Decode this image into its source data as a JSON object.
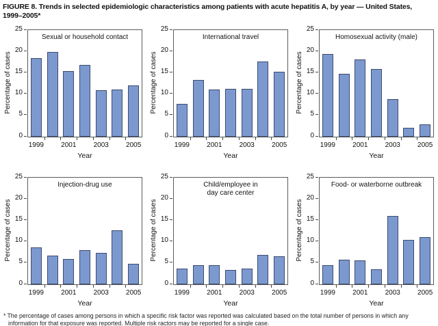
{
  "figure": {
    "title_line1": "FIGURE 8. Trends in selected epidemiologic characteristics among patients with acute hepatitis A, by year — United States,",
    "title_line2": "1999–2005*"
  },
  "footnote": {
    "marker": "*",
    "text": "The percentage of cases among persons in which a specific risk factor was reported was calculated based on the total number of persons in which any information for that exposure was reported. Multiple risk ractors may be reported for a single case."
  },
  "colors": {
    "bar_fill": "#7c99cf",
    "bar_stroke": "#3b4a70",
    "plot_border": "#5a5a5a",
    "tick": "#444444",
    "text": "#000000"
  },
  "chart_data": [
    {
      "type": "bar",
      "title": "Sexual or household contact",
      "categories": [
        "1999",
        "2000",
        "2001",
        "2002",
        "2003",
        "2004",
        "2005"
      ],
      "values": [
        18.3,
        19.8,
        15.3,
        16.8,
        10.8,
        11.0,
        12.0
      ],
      "xlabel": "Year",
      "ylabel": "Percentage of cases",
      "ylim": [
        0,
        25
      ],
      "yticks": [
        0,
        5,
        10,
        15,
        20,
        25
      ],
      "xticks_shown": [
        "1999",
        "2001",
        "2003",
        "2005"
      ],
      "grid": "off",
      "legend": "none"
    },
    {
      "type": "bar",
      "title": "International travel",
      "categories": [
        "1999",
        "2000",
        "2001",
        "2002",
        "2003",
        "2004",
        "2005"
      ],
      "values": [
        7.6,
        13.2,
        11.0,
        11.1,
        11.1,
        17.5,
        15.1
      ],
      "xlabel": "Year",
      "ylabel": "Percentage of cases",
      "ylim": [
        0,
        25
      ],
      "yticks": [
        0,
        5,
        10,
        15,
        20,
        25
      ],
      "xticks_shown": [
        "1999",
        "2001",
        "2003",
        "2005"
      ],
      "grid": "off",
      "legend": "none"
    },
    {
      "type": "bar",
      "title": "Homosexual activity (male)",
      "categories": [
        "1999",
        "2000",
        "2001",
        "2002",
        "2003",
        "2004",
        "2005"
      ],
      "values": [
        19.3,
        14.7,
        18.1,
        15.8,
        8.7,
        2.0,
        2.9
      ],
      "xlabel": "Year",
      "ylabel": "Percentage of cases",
      "ylim": [
        0,
        25
      ],
      "yticks": [
        0,
        5,
        10,
        15,
        20,
        25
      ],
      "xticks_shown": [
        "1999",
        "2001",
        "2003",
        "2005"
      ],
      "grid": "off",
      "legend": "none"
    },
    {
      "type": "bar",
      "title": "Injection-drug use",
      "categories": [
        "1999",
        "2000",
        "2001",
        "2002",
        "2003",
        "2004",
        "2005"
      ],
      "values": [
        8.6,
        6.6,
        5.9,
        8.0,
        7.3,
        12.6,
        4.8
      ],
      "xlabel": "Year",
      "ylabel": "Percentage of cases",
      "ylim": [
        0,
        25
      ],
      "yticks": [
        0,
        5,
        10,
        15,
        20,
        25
      ],
      "xticks_shown": [
        "1999",
        "2001",
        "2003",
        "2005"
      ],
      "grid": "off",
      "legend": "none"
    },
    {
      "type": "bar",
      "title": "Child/employee in\nday care center",
      "categories": [
        "1999",
        "2000",
        "2001",
        "2002",
        "2003",
        "2004",
        "2005"
      ],
      "values": [
        3.6,
        4.4,
        4.4,
        3.3,
        3.7,
        6.9,
        6.5
      ],
      "xlabel": "Year",
      "ylabel": "Percentage of cases",
      "ylim": [
        0,
        25
      ],
      "yticks": [
        0,
        5,
        10,
        15,
        20,
        25
      ],
      "xticks_shown": [
        "1999",
        "2001",
        "2003",
        "2005"
      ],
      "grid": "off",
      "legend": "none"
    },
    {
      "type": "bar",
      "title": "Food- or waterborne outbreak",
      "categories": [
        "1999",
        "2000",
        "2001",
        "2002",
        "2003",
        "2004",
        "2005"
      ],
      "values": [
        4.5,
        5.7,
        5.5,
        3.5,
        16.0,
        10.3,
        11.0
      ],
      "xlabel": "Year",
      "ylabel": "Percentage of cases",
      "ylim": [
        0,
        25
      ],
      "yticks": [
        0,
        5,
        10,
        15,
        20,
        25
      ],
      "xticks_shown": [
        "1999",
        "2001",
        "2003",
        "2005"
      ],
      "grid": "off",
      "legend": "none"
    }
  ]
}
